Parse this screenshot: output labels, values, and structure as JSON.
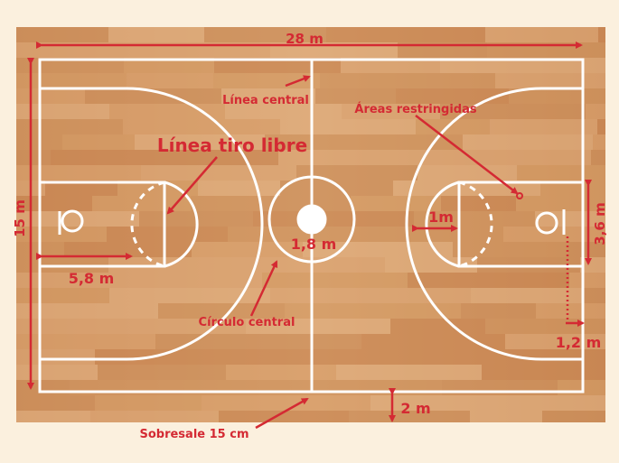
{
  "labels": {
    "length": "28 m",
    "width": "15 m",
    "center_line": "Línea central",
    "restricted_areas": "Áreas restringidas",
    "free_throw_line": "Línea tiro libre",
    "one_meter": "1m",
    "center_circle_diameter": "1,8 m",
    "key_height": "3,6 m",
    "free_throw_distance": "5,8 m",
    "center_circle": "Círculo central",
    "backboard_offset": "1,2 m",
    "outer_margin": "2 m",
    "overhang": "Sobresale 15 cm"
  },
  "colors": {
    "background": "#fbf0de",
    "wood_light": "#d9a06b",
    "wood_dark": "#b8743f",
    "court_lines": "#ffffff",
    "annotation": "#d42a33"
  }
}
